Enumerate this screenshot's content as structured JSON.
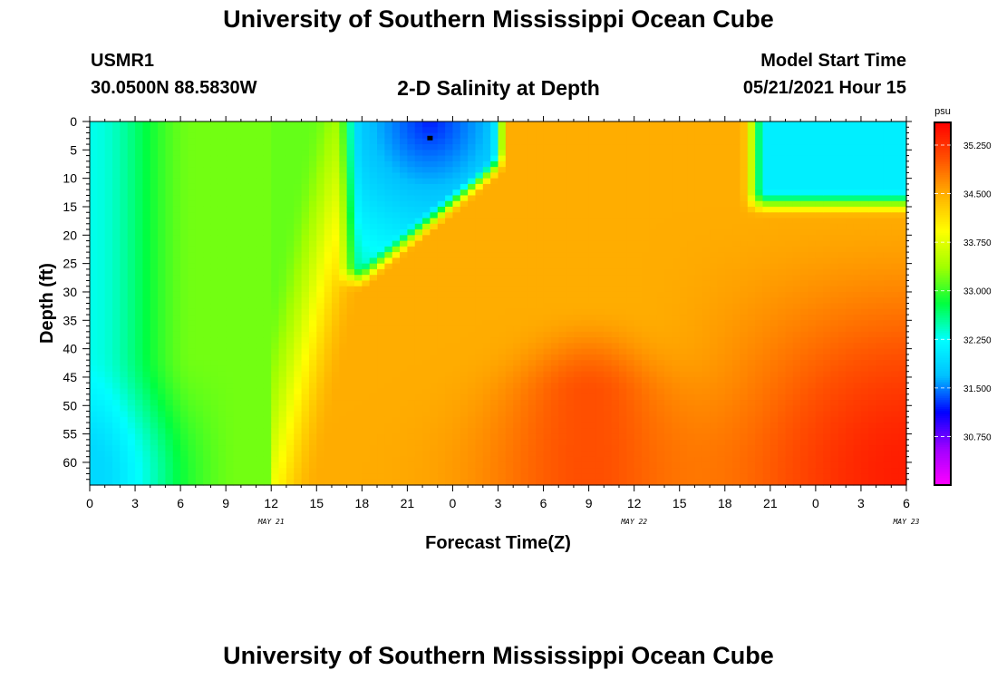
{
  "header": {
    "title": "University of Southern Mississippi Ocean Cube",
    "station_id": "USMR1",
    "station_coords": "30.0500N  88.5830W",
    "subtitle": "2-D Salinity at Depth",
    "model_label": "Model Start Time",
    "model_time": "05/21/2021 Hour 15"
  },
  "footer": {
    "title": "University of Southern Mississippi Ocean Cube"
  },
  "chart_data": {
    "type": "heatmap",
    "title": "2-D Salinity at Depth",
    "xlabel": "Forecast Time(Z)",
    "ylabel": "Depth (ft)",
    "x_tick_labels": [
      "0",
      "3",
      "6",
      "9",
      "12",
      "15",
      "18",
      "21",
      "0",
      "3",
      "6",
      "9",
      "12",
      "15",
      "18",
      "21",
      "0",
      "3",
      "6"
    ],
    "x_day_labels": [
      {
        "label": "MAY 21",
        "hour": 12
      },
      {
        "label": "MAY 22",
        "hour": 36
      },
      {
        "label": "MAY 23",
        "hour": 54
      }
    ],
    "x_range_hours": [
      0,
      54
    ],
    "y_tick_labels": [
      "0",
      "5",
      "10",
      "15",
      "20",
      "25",
      "30",
      "35",
      "40",
      "45",
      "50",
      "55",
      "60"
    ],
    "y_range": [
      0,
      64
    ],
    "y_inverted": true,
    "colorbar": {
      "unit": "psu",
      "range": [
        30.0,
        35.6
      ],
      "tick_labels": [
        "35.250",
        "34.500",
        "33.750",
        "33.000",
        "32.250",
        "31.500",
        "30.750"
      ],
      "colors": [
        "#ff00ff",
        "#a000ff",
        "#0000ff",
        "#00c0ff",
        "#00ffff",
        "#00ff40",
        "#a0ff00",
        "#ffff00",
        "#ffb000",
        "#ff5000",
        "#ff0000"
      ]
    },
    "marker": {
      "hour": 22.5,
      "depth": 3
    },
    "grid": false
  }
}
